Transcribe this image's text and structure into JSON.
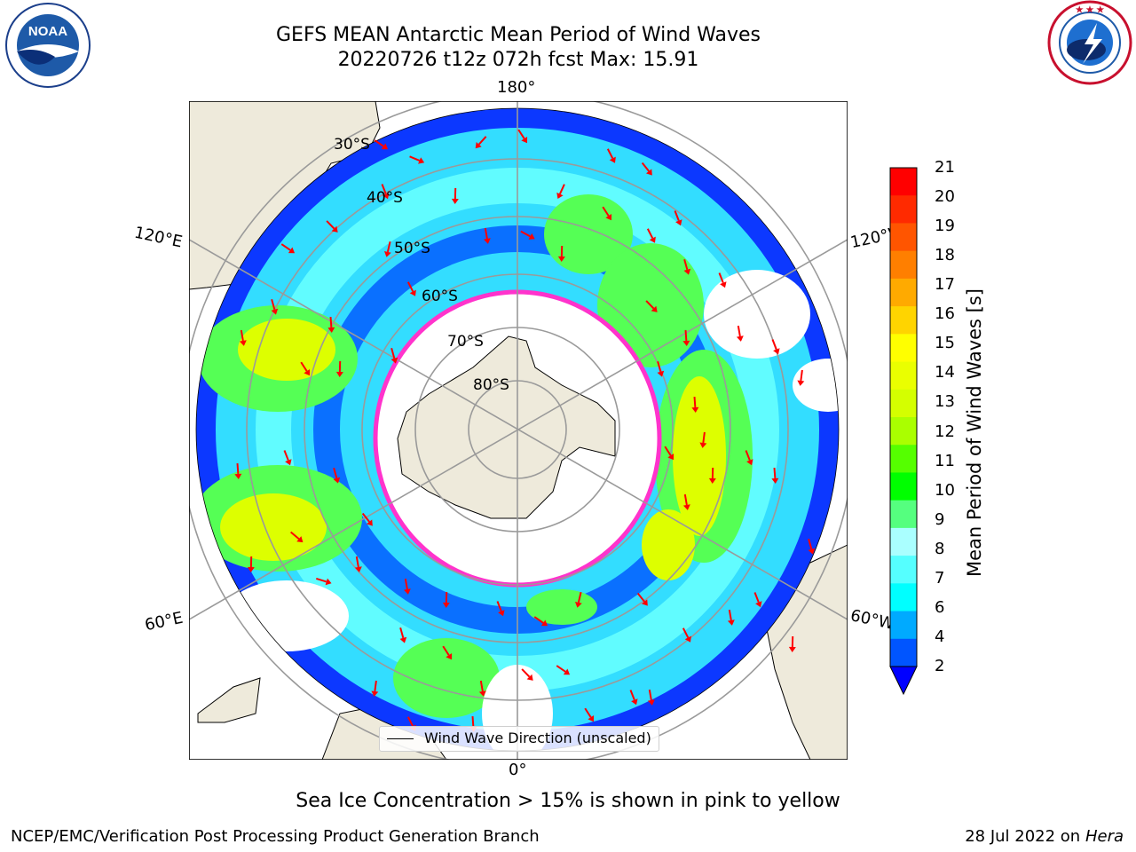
{
  "header": {
    "title_line1": "GEFS MEAN Antarctic Mean Period of Wind Waves",
    "title_line2": "20220726 t12z 072h fcst   Max: 15.91"
  },
  "logos": {
    "left": {
      "name": "noaa-logo",
      "text": "NOAA",
      "ring_text": "NATIONAL OCEANIC AND ATMOSPHERIC ADMINISTRATION • U.S. DEPARTMENT OF COMMERCE"
    },
    "right": {
      "name": "nws-logo",
      "ring_text": "NATIONAL WEATHER SERVICE"
    }
  },
  "map": {
    "projection": "south-polar-stereographic",
    "longitude_labels": {
      "top": "180°",
      "bottom": "0°",
      "left_upper": "120°E",
      "left_lower": "60°E",
      "right_upper": "120°W",
      "right_lower": "60°W"
    },
    "latitude_labels": [
      "30°S",
      "40°S",
      "50°S",
      "60°S",
      "70°S",
      "80°S"
    ],
    "legend": "Wind Wave Direction (unscaled)"
  },
  "colorbar": {
    "label": "Mean Period of Wind Waves [s]",
    "ticks": [
      "21",
      "20",
      "19",
      "18",
      "17",
      "16",
      "15",
      "14",
      "13",
      "12",
      "11",
      "10",
      "9",
      "8",
      "7",
      "6",
      "4",
      "2"
    ],
    "colors": [
      "#ff0000",
      "#ff2a00",
      "#ff5500",
      "#ff7f00",
      "#ffaa00",
      "#ffd400",
      "#ffff00",
      "#eaff00",
      "#d4ff00",
      "#aaff00",
      "#55ff00",
      "#00ff00",
      "#55ff7f",
      "#aaffff",
      "#55ffff",
      "#00ffff",
      "#00aaff",
      "#0055ff"
    ],
    "extend_color": "#0000ff"
  },
  "footer": {
    "caption": "Sea Ice Concentration > 15% is shown in pink to yellow",
    "credit_left": "NCEP/EMC/Verification Post Processing Product Generation Branch",
    "credit_right_prefix": "28 Jul 2022 on ",
    "credit_right_host": "Hera"
  }
}
